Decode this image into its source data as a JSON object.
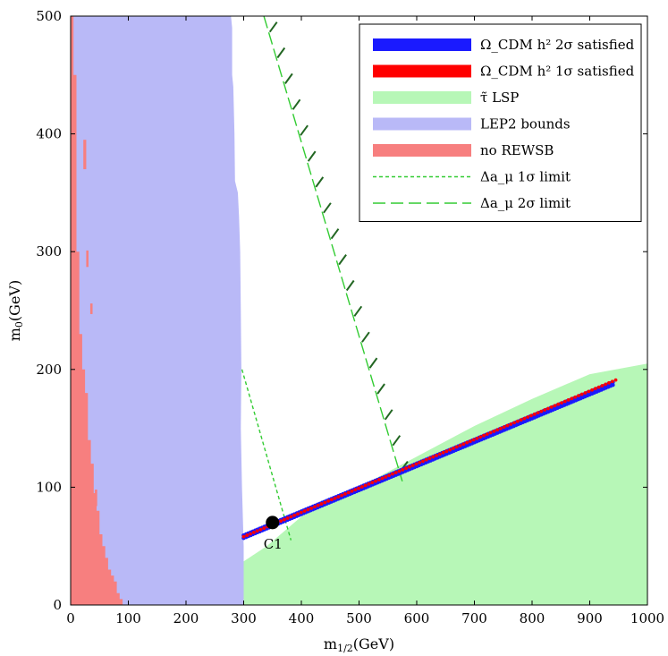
{
  "chart_data": {
    "type": "scatter",
    "title": "",
    "xlabel": "m_{1/2}(GeV)",
    "ylabel": "m_0(GeV)",
    "xlim": [
      0,
      1000
    ],
    "ylim": [
      0,
      500
    ],
    "xticks": [
      0,
      100,
      200,
      300,
      400,
      500,
      600,
      700,
      800,
      900,
      1000
    ],
    "yticks": [
      0,
      100,
      200,
      300,
      400,
      500
    ],
    "legend_position": "top-right",
    "legend": [
      {
        "label": "Ω_CDM h² 2σ satisfied",
        "color": "#1a1aff",
        "kind": "band"
      },
      {
        "label": "Ω_CDM h² 1σ satisfied",
        "color": "#ff0000",
        "kind": "band"
      },
      {
        "label": "τ̃ LSP",
        "color": "#b7f7b7",
        "kind": "band"
      },
      {
        "label": "LEP2 bounds",
        "color": "#b9b9f7",
        "kind": "band"
      },
      {
        "label": "no REWSB",
        "color": "#f77f7f",
        "kind": "band"
      },
      {
        "label": "Δa_μ 1σ limit",
        "color": "#33cc33",
        "kind": "short-dash"
      },
      {
        "label": "Δa_μ 2σ limit",
        "color": "#33cc33",
        "kind": "long-dash"
      }
    ],
    "regions": {
      "lep2_bounds": {
        "color": "#b9b9f7",
        "boundary": [
          [
            0,
            0
          ],
          [
            0,
            500
          ],
          [
            278,
            500
          ],
          [
            280,
            490
          ],
          [
            280,
            450
          ],
          [
            282,
            440
          ],
          [
            284,
            400
          ],
          [
            285,
            360
          ],
          [
            290,
            350
          ],
          [
            292,
            330
          ],
          [
            294,
            300
          ],
          [
            295,
            250
          ],
          [
            296,
            200
          ],
          [
            295,
            150
          ],
          [
            297,
            100
          ],
          [
            300,
            50
          ],
          [
            300,
            0
          ]
        ]
      },
      "no_rewsb": {
        "color": "#f77f7f",
        "steps": [
          [
            0,
            500
          ],
          [
            5,
            500
          ],
          [
            5,
            450
          ],
          [
            10,
            450
          ],
          [
            10,
            300
          ],
          [
            15,
            300
          ],
          [
            15,
            230
          ],
          [
            20,
            230
          ],
          [
            20,
            200
          ],
          [
            25,
            200
          ],
          [
            25,
            180
          ],
          [
            30,
            180
          ],
          [
            30,
            140
          ],
          [
            35,
            140
          ],
          [
            35,
            120
          ],
          [
            40,
            120
          ],
          [
            40,
            95
          ],
          [
            45,
            95
          ],
          [
            45,
            80
          ],
          [
            50,
            80
          ],
          [
            50,
            60
          ],
          [
            55,
            60
          ],
          [
            55,
            50
          ],
          [
            60,
            50
          ],
          [
            60,
            40
          ],
          [
            65,
            40
          ],
          [
            65,
            30
          ],
          [
            70,
            30
          ],
          [
            70,
            25
          ],
          [
            75,
            25
          ],
          [
            75,
            20
          ],
          [
            80,
            20
          ],
          [
            80,
            10
          ],
          [
            85,
            10
          ],
          [
            85,
            5
          ],
          [
            90,
            5
          ],
          [
            90,
            0
          ]
        ],
        "islands": [
          [
            22,
            370,
            27,
            395
          ],
          [
            27,
            287,
            31,
            301
          ],
          [
            34,
            247,
            38,
            256
          ],
          [
            42,
            84,
            46,
            98
          ]
        ]
      },
      "stau_lsp": {
        "color": "#b7f7b7",
        "boundary": [
          [
            300,
            0
          ],
          [
            300,
            37
          ],
          [
            340,
            50
          ],
          [
            400,
            75
          ],
          [
            500,
            100
          ],
          [
            600,
            126
          ],
          [
            700,
            152
          ],
          [
            800,
            175
          ],
          [
            900,
            196
          ],
          [
            1000,
            205
          ],
          [
            1000,
            0
          ]
        ]
      }
    },
    "series": [
      {
        "name": "Ω_CDM h² 2σ satisfied",
        "color": "#1a1aff",
        "x": [
          300,
          940
        ],
        "y": [
          58,
          188
        ]
      },
      {
        "name": "Ω_CDM h² 1σ satisfied",
        "color": "#ff0000",
        "x": [
          300,
          945
        ],
        "y": [
          58,
          191
        ]
      }
    ],
    "lines": [
      {
        "name": "Δa_μ 1σ limit",
        "style": "short-dash",
        "color": "#33cc33",
        "x": [
          297,
          382
        ],
        "y": [
          200,
          55
        ]
      },
      {
        "name": "Δa_μ 2σ limit",
        "style": "long-dash",
        "color": "#33cc33",
        "x": [
          335,
          575
        ],
        "y": [
          500,
          105
        ],
        "hatched": true
      }
    ],
    "annotations": [
      {
        "text": "C1",
        "x": 350,
        "y": 70
      }
    ]
  }
}
